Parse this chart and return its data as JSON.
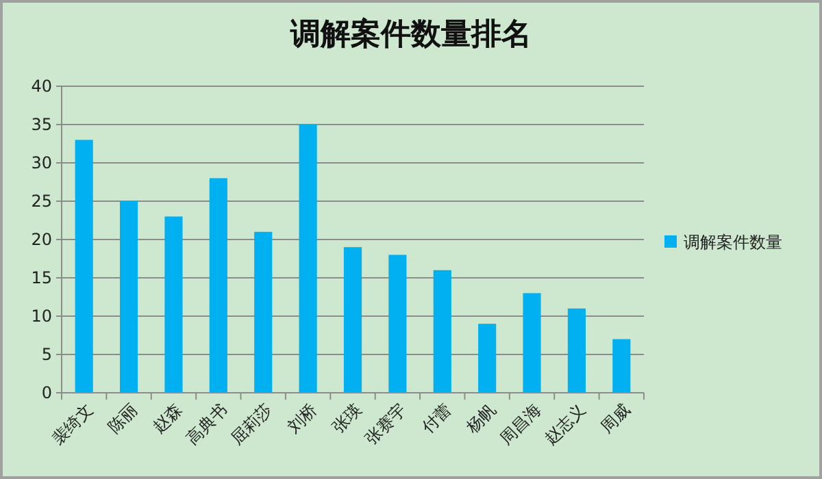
{
  "chart_data": {
    "type": "bar",
    "title": "调解案件数量排名",
    "categories": [
      "裴绮文",
      "陈丽",
      "赵森",
      "高典书",
      "屈莉莎",
      "刘桥",
      "张瑛",
      "张赛宇",
      "付蕾",
      "杨帆",
      "周昌海",
      "赵志义",
      "周威"
    ],
    "series": [
      {
        "name": "调解案件数量",
        "color": "#00b0f0",
        "values": [
          33,
          25,
          23,
          28,
          21,
          35,
          19,
          18,
          16,
          9,
          13,
          11,
          7
        ]
      }
    ],
    "ylim": [
      0,
      40
    ],
    "yticks": [
      0,
      5,
      10,
      15,
      20,
      25,
      30,
      35,
      40
    ],
    "grid": "y",
    "legend": "right"
  }
}
